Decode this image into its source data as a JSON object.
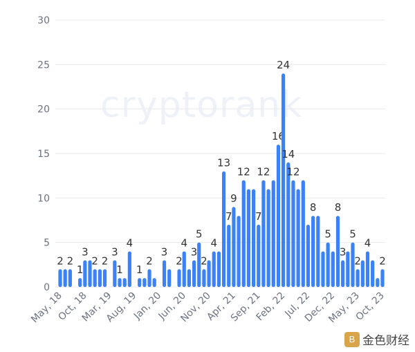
{
  "chart_data": {
    "type": "bar",
    "title": "",
    "xlabel": "",
    "ylabel": "",
    "ylim": [
      0,
      30
    ],
    "yticks": [
      0,
      5,
      10,
      15,
      20,
      25,
      30
    ],
    "grid": true,
    "bar_color": "#3b82f6",
    "x_tick_labels": [
      "May, 18",
      "Oct, 18",
      "Mar, 19",
      "Aug, 19",
      "Jan, 20",
      "Jun, 20",
      "Nov, 20",
      "Apr, 21",
      "Sep, 21",
      "Feb, 22",
      "Jul, 22",
      "Dec, 22",
      "May, 23",
      "Oct, 23"
    ],
    "x_tick_every": 5,
    "values": [
      2,
      2,
      2,
      0,
      1,
      3,
      3,
      2,
      2,
      2,
      0,
      3,
      1,
      1,
      4,
      0,
      1,
      1,
      2,
      1,
      0,
      3,
      2,
      0,
      2,
      4,
      2,
      3,
      5,
      2,
      3,
      4,
      4,
      13,
      7,
      9,
      8,
      12,
      11,
      11,
      7,
      12,
      11,
      12,
      16,
      24,
      14,
      12,
      11,
      12,
      7,
      8,
      8,
      4,
      5,
      4,
      8,
      3,
      4,
      5,
      2,
      3,
      4,
      3,
      1,
      2
    ],
    "labeled_bars": [
      0,
      2,
      4,
      5,
      7,
      9,
      11,
      12,
      14,
      16,
      18,
      21,
      24,
      25,
      27,
      28,
      29,
      31,
      33,
      34,
      35,
      37,
      40,
      41,
      44,
      45,
      46,
      47,
      51,
      54,
      56,
      57,
      59,
      60,
      62,
      65
    ]
  },
  "watermark": "cryptorank",
  "logo": {
    "text": "金色财经",
    "mark": "B"
  }
}
